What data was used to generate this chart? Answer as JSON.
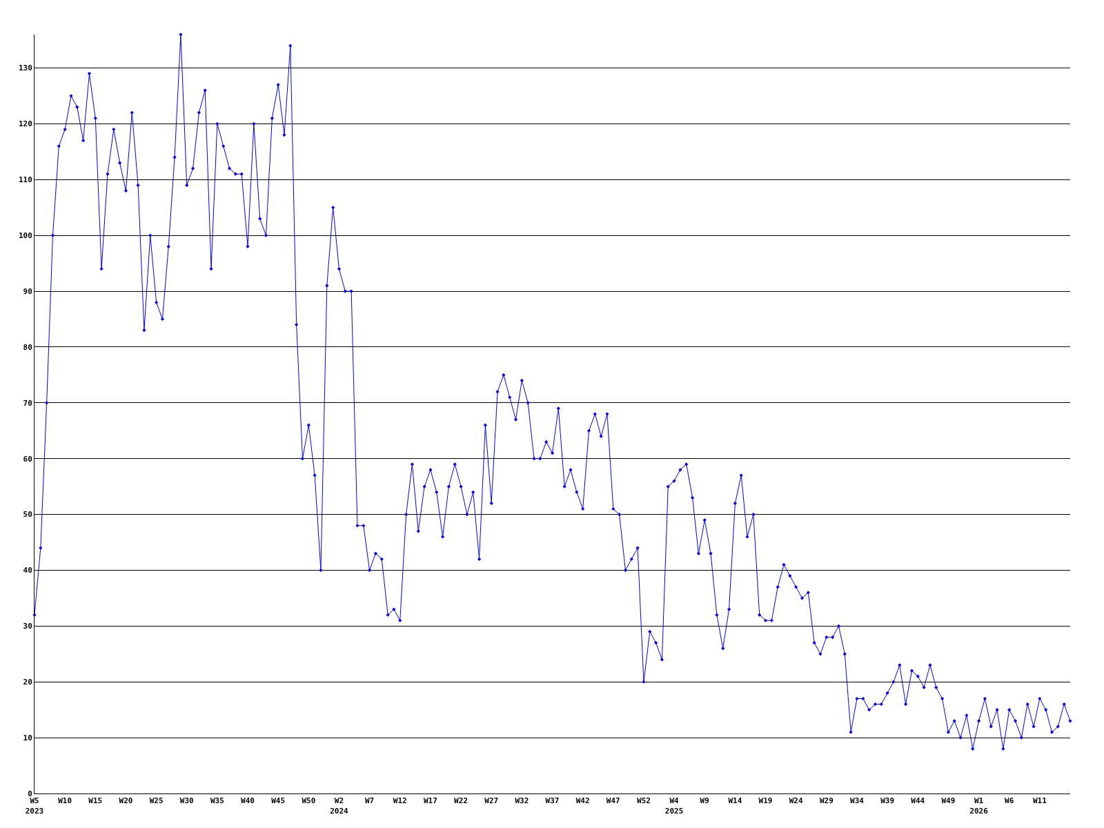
{
  "chart_data": {
    "type": "line",
    "categories": [
      "W5\n2023",
      null,
      null,
      null,
      null,
      "W10",
      null,
      null,
      null,
      null,
      "W15",
      null,
      null,
      null,
      null,
      "W20",
      null,
      null,
      null,
      null,
      "W25",
      null,
      null,
      null,
      null,
      "W30",
      null,
      null,
      null,
      null,
      "W35",
      null,
      null,
      null,
      null,
      "W40",
      null,
      null,
      null,
      null,
      "W45",
      null,
      null,
      null,
      null,
      "W50",
      null,
      null,
      null,
      null,
      "W2\n2024",
      null,
      null,
      null,
      null,
      "W7",
      null,
      null,
      null,
      null,
      "W12",
      null,
      null,
      null,
      null,
      "W17",
      null,
      null,
      null,
      null,
      "W22",
      null,
      null,
      null,
      null,
      "W27",
      null,
      null,
      null,
      null,
      "W32",
      null,
      null,
      null,
      null,
      "W37",
      null,
      null,
      null,
      null,
      "W42",
      null,
      null,
      null,
      null,
      "W47",
      null,
      null,
      null,
      null,
      "W52",
      null,
      null,
      null,
      null,
      "W4\n2025",
      null,
      null,
      null,
      null,
      "W9",
      null,
      null,
      null,
      null,
      "W14",
      null,
      null,
      null,
      null,
      "W19",
      null,
      null,
      null,
      null,
      "W24",
      null,
      null,
      null,
      null,
      "W29",
      null,
      null,
      null,
      null,
      "W34",
      null,
      null,
      null,
      null,
      "W39",
      null,
      null,
      null,
      null,
      "W44",
      null,
      null,
      null,
      null,
      "W49",
      null,
      null,
      null,
      null,
      "W1\n2026",
      null,
      null,
      null,
      null,
      "W6",
      null,
      null,
      null,
      null,
      "W11",
      null,
      null,
      null,
      null,
      null
    ],
    "series": [
      {
        "color": "#0000ff",
        "values": [
          32,
          44,
          70,
          100,
          116,
          119,
          125,
          123,
          117,
          129,
          121,
          94,
          111,
          119,
          113,
          108,
          122,
          109,
          83,
          100,
          88,
          85,
          98,
          114,
          136,
          109,
          112,
          122,
          126,
          94,
          120,
          116,
          112,
          111,
          111,
          98,
          120,
          103,
          100,
          121,
          127,
          118,
          134,
          84,
          60,
          66,
          57,
          40,
          91,
          105,
          94,
          90,
          90,
          48,
          48,
          40,
          43,
          42,
          32,
          33,
          31,
          50,
          59,
          47,
          55,
          58,
          54,
          46,
          55,
          59,
          55,
          50,
          54,
          42,
          66,
          52,
          72,
          75,
          71,
          67,
          74,
          70,
          60,
          60,
          63,
          61,
          69,
          55,
          58,
          54,
          51,
          65,
          68,
          64,
          68,
          51,
          50,
          40,
          42,
          44,
          20,
          29,
          27,
          24,
          55,
          56,
          58,
          59,
          53,
          43,
          49,
          43,
          32,
          26,
          33,
          52,
          57,
          46,
          50,
          32,
          31,
          31,
          37,
          41,
          39,
          37,
          35,
          36,
          27,
          25,
          28,
          28,
          30,
          25,
          11,
          17,
          17,
          15,
          16,
          16,
          18,
          20,
          23,
          16,
          22,
          21,
          19,
          23,
          19,
          17,
          11,
          13,
          10,
          14,
          8,
          13,
          17,
          12,
          15,
          8,
          15,
          13,
          10,
          16,
          12,
          17,
          15,
          11,
          12,
          16,
          13
        ]
      }
    ],
    "ylim": [
      0,
      136
    ],
    "yticks": [
      0,
      10,
      20,
      30,
      40,
      50,
      60,
      70,
      80,
      90,
      100,
      110,
      120,
      130
    ],
    "grid": "y",
    "marker": "diamond",
    "line_style": "solid",
    "legend": false
  }
}
